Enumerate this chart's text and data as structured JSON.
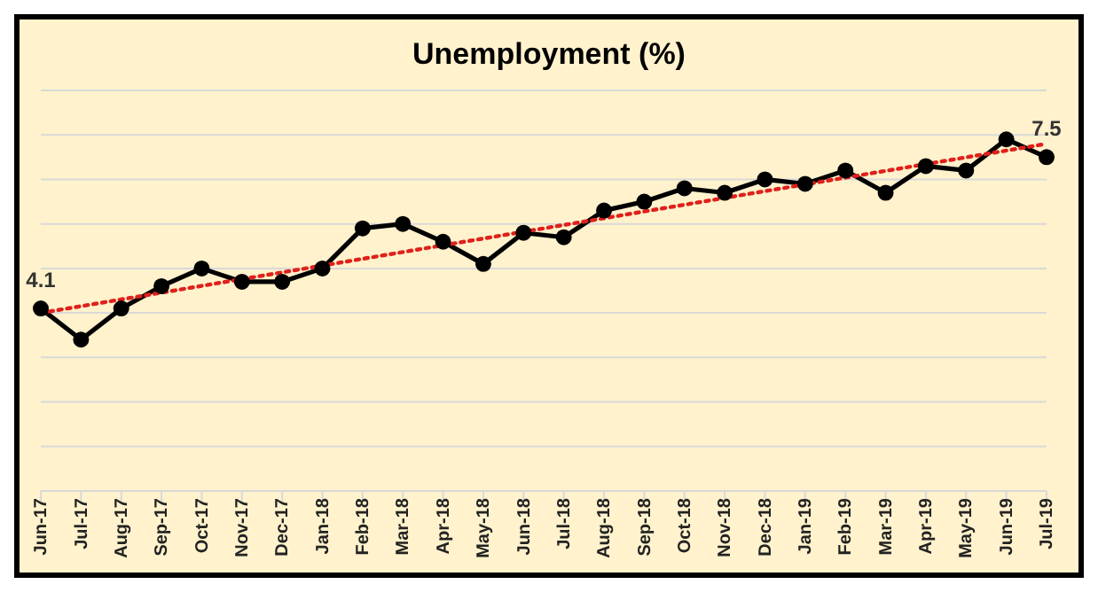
{
  "chart_data": {
    "type": "line",
    "title": "Unemployment (%)",
    "categories": [
      "Jun-17",
      "Jul-17",
      "Aug-17",
      "Sep-17",
      "Oct-17",
      "Nov-17",
      "Dec-17",
      "Jan-18",
      "Feb-18",
      "Mar-18",
      "Apr-18",
      "May-18",
      "Jun-18",
      "Jul-18",
      "Aug-18",
      "Sep-18",
      "Oct-18",
      "Nov-18",
      "Dec-18",
      "Jan-19",
      "Feb-19",
      "Mar-19",
      "Apr-19",
      "May-19",
      "Jun-19",
      "Jul-19"
    ],
    "series": [
      {
        "color": "#000000",
        "marker": "circle",
        "line_style": "solid",
        "values": [
          4.1,
          3.4,
          4.1,
          4.6,
          5.0,
          4.7,
          4.7,
          5.0,
          5.9,
          6.0,
          5.6,
          5.1,
          5.8,
          5.7,
          6.3,
          6.5,
          6.8,
          6.7,
          7.0,
          6.9,
          7.2,
          6.7,
          7.3,
          7.2,
          7.9,
          7.5
        ],
        "value_labels": [
          "4.1",
          null,
          null,
          null,
          null,
          null,
          null,
          null,
          null,
          null,
          null,
          null,
          null,
          null,
          null,
          null,
          null,
          null,
          null,
          null,
          null,
          null,
          null,
          null,
          null,
          "7.5"
        ]
      },
      {
        "type": "line",
        "color": "#e0201b",
        "marker": "none",
        "line_style": "dotted",
        "values": [
          4.0,
          null,
          null,
          null,
          null,
          null,
          null,
          null,
          null,
          null,
          null,
          null,
          null,
          null,
          null,
          null,
          null,
          null,
          null,
          null,
          null,
          null,
          null,
          null,
          null,
          7.8
        ]
      }
    ],
    "ylim": [
      0,
      9
    ],
    "yticks": [
      {
        "value": 0,
        "label": null
      },
      {
        "value": 1,
        "label": null
      },
      {
        "value": 2,
        "label": null
      },
      {
        "value": 3,
        "label": null
      },
      {
        "value": 4,
        "label": null
      },
      {
        "value": 5,
        "label": null
      },
      {
        "value": 6,
        "label": null
      },
      {
        "value": 7,
        "label": null
      },
      {
        "value": 8,
        "label": null
      },
      {
        "value": 9,
        "label": null
      }
    ],
    "tick_labels": "x",
    "grid": "y",
    "legend": false
  }
}
